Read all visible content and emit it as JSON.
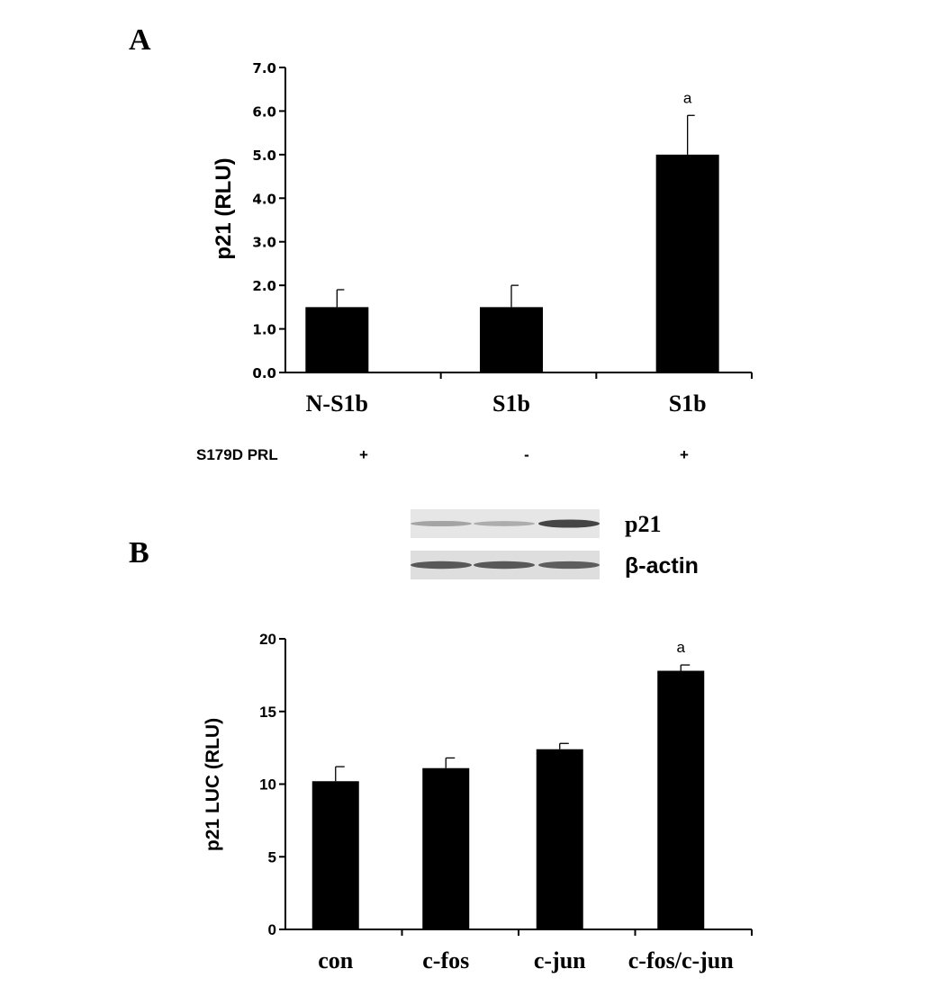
{
  "panels": {
    "a": "A",
    "b": "B"
  },
  "treatment": {
    "label": "S179D PRL",
    "values": [
      "+",
      "-",
      "+"
    ]
  },
  "blot": {
    "p21_label": "p21",
    "actin_label": "β-actin",
    "p21_intensity": [
      0.35,
      0.3,
      0.85
    ],
    "actin_intensity": [
      0.75,
      0.75,
      0.72
    ]
  },
  "chart_data": [
    {
      "type": "bar",
      "title": "",
      "ylabel": "p21 (RLU)",
      "xlabel": "",
      "categories": [
        "N-S1b",
        "S1b",
        "S1b"
      ],
      "values": [
        1.5,
        1.5,
        5.0
      ],
      "errors": [
        0.4,
        0.5,
        0.9
      ],
      "annotations": [
        "",
        "",
        "a"
      ],
      "ylim": [
        0,
        7
      ],
      "yticks": [
        "0.0",
        "1.0",
        "2.0",
        "3.0",
        "4.0",
        "5.0",
        "6.0",
        "7.0"
      ],
      "grid": false,
      "colors": {
        "bar": "#000000"
      }
    },
    {
      "type": "bar",
      "title": "",
      "ylabel": "p21 LUC (RLU)",
      "xlabel": "",
      "categories": [
        "con",
        "c-fos",
        "c-jun",
        "c-fos/c-jun"
      ],
      "values": [
        10.2,
        11.1,
        12.4,
        17.8
      ],
      "errors": [
        1.0,
        0.7,
        0.4,
        0.4
      ],
      "annotations": [
        "",
        "",
        "",
        "a"
      ],
      "ylim": [
        0,
        20
      ],
      "yticks": [
        "0",
        "5",
        "10",
        "15",
        "20"
      ],
      "grid": false,
      "colors": {
        "bar": "#000000"
      }
    }
  ]
}
